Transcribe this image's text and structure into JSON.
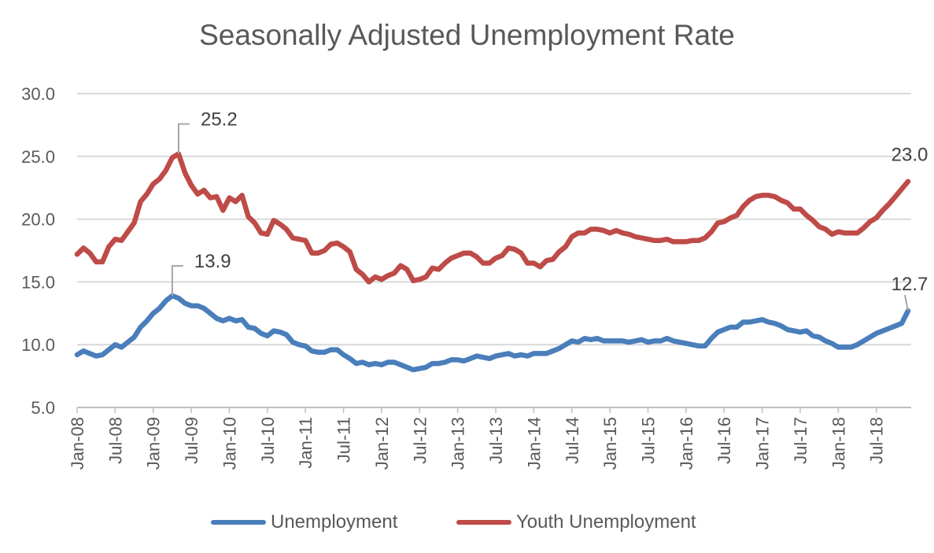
{
  "chart_data": {
    "type": "line",
    "title": "Seasonally Adjusted Unemployment Rate",
    "xlabel": "",
    "ylabel": "",
    "x_frequency": "monthly",
    "x_start": "Jan-08",
    "x_end": "Dec-18",
    "x_tick_labels": [
      "Jan-08",
      "Jul-08",
      "Jan-09",
      "Jul-09",
      "Jan-10",
      "Jul-10",
      "Jan-11",
      "Jul-11",
      "Jan-12",
      "Jul-12",
      "Jan-13",
      "Jul-13",
      "Jan-14",
      "Jul-14",
      "Jan-15",
      "Jul-15",
      "Jan-16",
      "Jul-16",
      "Jan-17",
      "Jul-17",
      "Jan-18",
      "Jul-18"
    ],
    "ylim": [
      5,
      30
    ],
    "y_tick_labels": [
      "5.0",
      "10.0",
      "15.0",
      "20.0",
      "25.0",
      "30.0"
    ],
    "grid": "horizontal",
    "legend": "bottom",
    "series": [
      {
        "name": "Unemployment",
        "color": "#4A7EBB",
        "values": [
          9.2,
          9.5,
          9.3,
          9.1,
          9.2,
          9.6,
          10.0,
          9.8,
          10.2,
          10.6,
          11.4,
          11.9,
          12.5,
          12.9,
          13.5,
          13.9,
          13.7,
          13.3,
          13.1,
          13.1,
          12.9,
          12.5,
          12.1,
          11.9,
          12.1,
          11.9,
          12.0,
          11.4,
          11.3,
          10.9,
          10.7,
          11.1,
          11.0,
          10.8,
          10.2,
          10.0,
          9.9,
          9.5,
          9.4,
          9.4,
          9.6,
          9.6,
          9.2,
          8.9,
          8.5,
          8.6,
          8.4,
          8.5,
          8.4,
          8.6,
          8.6,
          8.4,
          8.2,
          8.0,
          8.1,
          8.2,
          8.5,
          8.5,
          8.6,
          8.8,
          8.8,
          8.7,
          8.9,
          9.1,
          9.0,
          8.9,
          9.1,
          9.2,
          9.3,
          9.1,
          9.2,
          9.1,
          9.3,
          9.3,
          9.3,
          9.5,
          9.7,
          10.0,
          10.3,
          10.2,
          10.5,
          10.4,
          10.5,
          10.3,
          10.3,
          10.3,
          10.3,
          10.2,
          10.3,
          10.4,
          10.2,
          10.3,
          10.3,
          10.5,
          10.3,
          10.2,
          10.1,
          10.0,
          9.9,
          9.9,
          10.5,
          11.0,
          11.2,
          11.4,
          11.4,
          11.8,
          11.8,
          11.9,
          12.0,
          11.8,
          11.7,
          11.5,
          11.2,
          11.1,
          11.0,
          11.1,
          10.7,
          10.6,
          10.3,
          10.1,
          9.8,
          9.8,
          9.8,
          10.0,
          10.3,
          10.6,
          10.9,
          11.1,
          11.3,
          11.5,
          11.7,
          12.7
        ],
        "data_labels": [
          {
            "index": 15,
            "text": "13.9"
          },
          {
            "index": 131,
            "text": "12.7"
          }
        ]
      },
      {
        "name": "Youth Unemployment",
        "color": "#BE4B48",
        "values": [
          17.2,
          17.7,
          17.3,
          16.6,
          16.6,
          17.8,
          18.4,
          18.3,
          19.0,
          19.7,
          21.4,
          22.0,
          22.8,
          23.2,
          23.9,
          24.9,
          25.2,
          23.7,
          22.7,
          22.0,
          22.3,
          21.7,
          21.8,
          20.7,
          21.7,
          21.4,
          21.9,
          20.2,
          19.7,
          18.9,
          18.8,
          19.9,
          19.6,
          19.2,
          18.5,
          18.4,
          18.3,
          17.3,
          17.3,
          17.5,
          18.0,
          18.1,
          17.8,
          17.4,
          16.0,
          15.6,
          15.0,
          15.4,
          15.2,
          15.5,
          15.7,
          16.3,
          16.0,
          15.1,
          15.2,
          15.4,
          16.1,
          16.0,
          16.5,
          16.9,
          17.1,
          17.3,
          17.3,
          17.0,
          16.5,
          16.5,
          16.9,
          17.1,
          17.7,
          17.6,
          17.3,
          16.5,
          16.5,
          16.2,
          16.7,
          16.8,
          17.4,
          17.8,
          18.6,
          18.9,
          18.9,
          19.2,
          19.2,
          19.1,
          18.9,
          19.1,
          18.9,
          18.8,
          18.6,
          18.5,
          18.4,
          18.3,
          18.3,
          18.4,
          18.2,
          18.2,
          18.2,
          18.3,
          18.3,
          18.5,
          19.0,
          19.7,
          19.8,
          20.1,
          20.3,
          21.0,
          21.5,
          21.8,
          21.9,
          21.9,
          21.8,
          21.5,
          21.3,
          20.8,
          20.8,
          20.3,
          19.9,
          19.4,
          19.2,
          18.8,
          19.0,
          18.9,
          18.9,
          18.9,
          19.3,
          19.8,
          20.1,
          20.7,
          21.2,
          21.8,
          22.4,
          23.0
        ],
        "data_labels": [
          {
            "index": 16,
            "text": "25.2"
          },
          {
            "index": 131,
            "text": "23.0"
          }
        ]
      }
    ]
  }
}
